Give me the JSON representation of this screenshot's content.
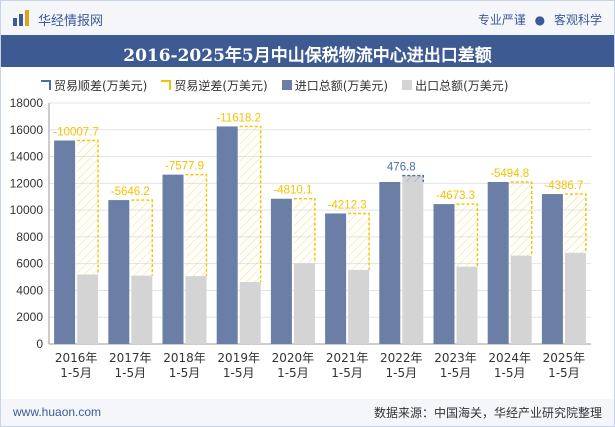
{
  "header": {
    "brand_name": "华经情报网",
    "tagline_left": "专业严谨",
    "tagline_right": "客观科学"
  },
  "footer": {
    "site": "www.huaon.com",
    "source": "数据来源：中国海关，华经产业研究院整理"
  },
  "colors": {
    "import": "#6b7fa6",
    "export": "#d4d4d4",
    "surplus": "#4a6eaa",
    "deficit": "#f2c300",
    "title_bg": "#3d5a93"
  },
  "chart_data": {
    "type": "bar",
    "title": "2016-2025年5月中山保税物流中心进出口差额",
    "categories": [
      [
        "2016年",
        "1-5月"
      ],
      [
        "2017年",
        "1-5月"
      ],
      [
        "2018年",
        "1-5月"
      ],
      [
        "2019年",
        "1-5月"
      ],
      [
        "2020年",
        "1-5月"
      ],
      [
        "2021年",
        "1-5月"
      ],
      [
        "2022年",
        "1-5月"
      ],
      [
        "2023年",
        "1-5月"
      ],
      [
        "2024年",
        "1-5月"
      ],
      [
        "2025年",
        "1-5月"
      ]
    ],
    "legend": [
      "贸易顺差(万美元)",
      "贸易逆差(万美元)",
      "进口总额(万美元)",
      "出口总额(万美元)"
    ],
    "series": [
      {
        "name": "进口总额(万美元)",
        "values": [
          15200,
          10750,
          12650,
          16250,
          10850,
          9750,
          12100,
          10450,
          12100,
          11200
        ]
      },
      {
        "name": "出口总额(万美元)",
        "values": [
          5192.3,
          5103.8,
          5072.1,
          4631.8,
          6039.9,
          5537.7,
          12576.8,
          5776.7,
          6605.2,
          6813.3
        ]
      }
    ],
    "balance": {
      "values": [
        -10007.7,
        -5646.2,
        -7577.9,
        -11618.2,
        -4810.1,
        -4212.3,
        476.8,
        -4673.3,
        -5494.8,
        -4386.7
      ],
      "labels": [
        "-10007.7",
        "-5646.2",
        "-7577.9",
        "-11618.2",
        "-4810.1",
        "-4212.3",
        "476.8",
        "-4673.3",
        "-5494.8",
        "-4386.7"
      ]
    },
    "ylim": [
      0,
      18000
    ],
    "yticks": [
      0,
      2000,
      4000,
      6000,
      8000,
      10000,
      12000,
      14000,
      16000,
      18000
    ],
    "grid": true,
    "legend_position": "top-left"
  }
}
